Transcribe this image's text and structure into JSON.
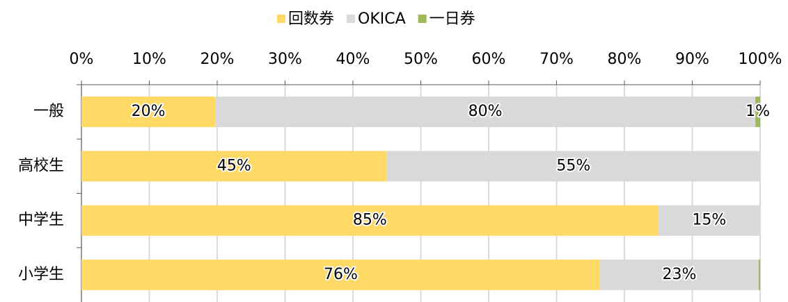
{
  "chart_data": {
    "type": "stacked_barh",
    "categories": [
      "一般",
      "高校生",
      "中学生",
      "小学生"
    ],
    "series": [
      {
        "name": "回数券",
        "color": "#ffd966",
        "values": [
          19.7,
          45,
          85,
          76.4
        ],
        "value_labels": [
          "20%",
          "45%",
          "85%",
          "76%"
        ]
      },
      {
        "name": "OKICA",
        "color": "#d9d9d9",
        "values": [
          79.6,
          55,
          15,
          23.4
        ],
        "value_labels": [
          "80%",
          "55%",
          "15%",
          "23%"
        ]
      },
      {
        "name": "一日券",
        "color": "#9bbb59",
        "values": [
          0.7,
          0,
          0,
          0.2
        ],
        "value_labels": [
          "1%",
          null,
          null,
          null
        ]
      }
    ],
    "xlim": [
      0,
      100
    ],
    "xticks": [
      {
        "value": 0,
        "label": "0%"
      },
      {
        "value": 10,
        "label": "10%"
      },
      {
        "value": 20,
        "label": "20%"
      },
      {
        "value": 30,
        "label": "30%"
      },
      {
        "value": 40,
        "label": "40%"
      },
      {
        "value": 50,
        "label": "50%"
      },
      {
        "value": 60,
        "label": "60%"
      },
      {
        "value": 70,
        "label": "70%"
      },
      {
        "value": 80,
        "label": "80%"
      },
      {
        "value": 90,
        "label": "90%"
      },
      {
        "value": 100,
        "label": "100%"
      }
    ],
    "grid": true,
    "legend": "top"
  }
}
